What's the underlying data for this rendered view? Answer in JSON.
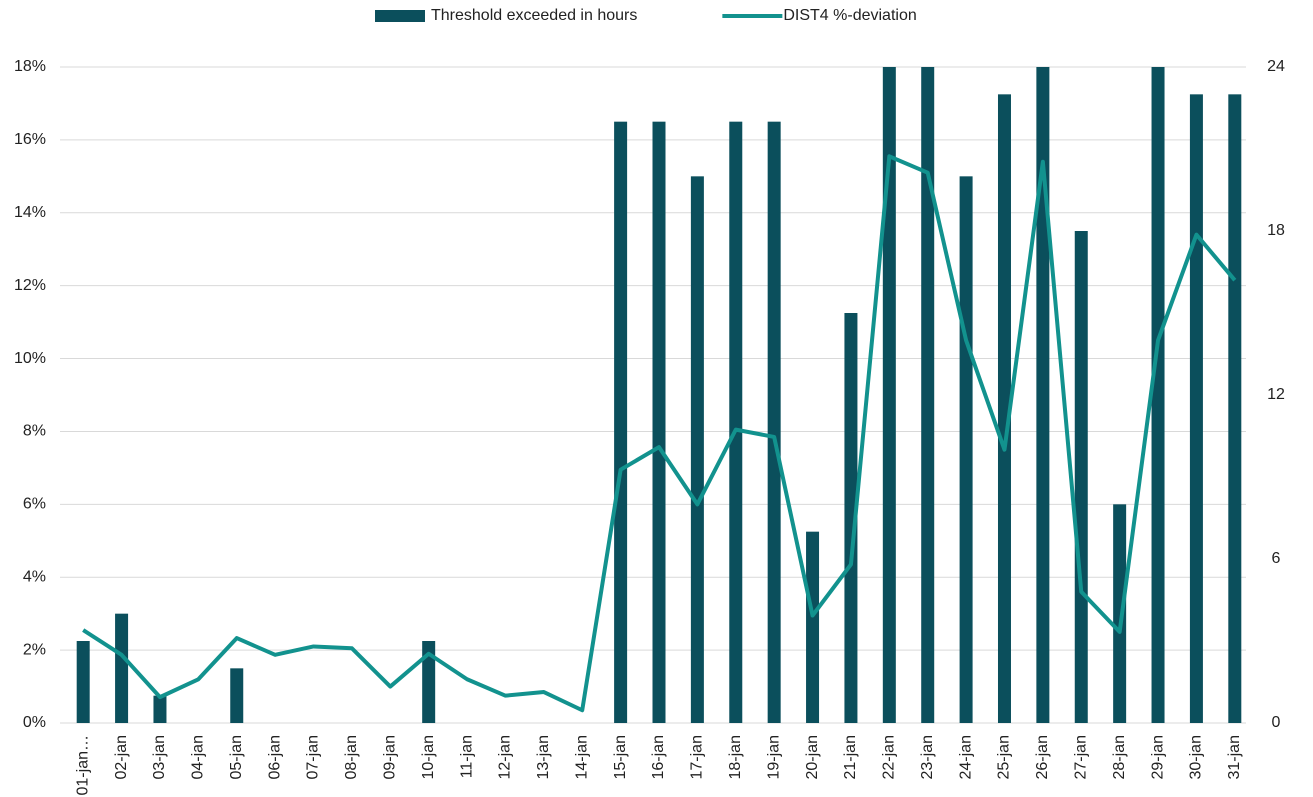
{
  "chart_data": {
    "type": "bar_line",
    "categories": [
      "01-jan…",
      "02-jan",
      "03-jan",
      "04-jan",
      "05-jan",
      "06-jan",
      "07-jan",
      "08-jan",
      "09-jan",
      "10-jan",
      "11-jan",
      "12-jan",
      "13-jan",
      "14-jan",
      "15-jan",
      "16-jan",
      "17-jan",
      "18-jan",
      "19-jan",
      "20-jan",
      "21-jan",
      "22-jan",
      "23-jan",
      "24-jan",
      "25-jan",
      "26-jan",
      "27-jan",
      "28-jan",
      "29-jan",
      "30-jan",
      "31-jan"
    ],
    "series": [
      {
        "name": "Threshold exceeded in hours",
        "type": "bar",
        "axis": "y2",
        "color": "#0b4f5c",
        "values": [
          3,
          4,
          1,
          0,
          2,
          0,
          0,
          0,
          0,
          3,
          0,
          0,
          0,
          0,
          22,
          22,
          20,
          22,
          22,
          7,
          15,
          24,
          24,
          20,
          23,
          24,
          18,
          8,
          24,
          23,
          23
        ]
      },
      {
        "name": "DIST4 %-deviation",
        "type": "line",
        "color": "#12928e",
        "values": [
          2.55,
          1.87,
          0.71,
          1.2,
          2.33,
          1.87,
          2.1,
          2.05,
          1.0,
          1.9,
          1.2,
          0.75,
          0.85,
          0.35,
          6.95,
          7.57,
          6.0,
          8.05,
          7.85,
          2.95,
          4.35,
          15.55,
          15.1,
          10.5,
          7.5,
          15.4,
          3.6,
          2.5,
          10.5,
          13.4,
          12.15
        ]
      }
    ],
    "ylim": [
      0,
      18
    ],
    "yticks": [
      {
        "value": 0,
        "label": "0%"
      },
      {
        "value": 2,
        "label": "2%"
      },
      {
        "value": 4,
        "label": "4%"
      },
      {
        "value": 6,
        "label": "6%"
      },
      {
        "value": 8,
        "label": "8%"
      },
      {
        "value": 10,
        "label": "10%"
      },
      {
        "value": 12,
        "label": "12%"
      },
      {
        "value": 14,
        "label": "14%"
      },
      {
        "value": 16,
        "label": "16%"
      },
      {
        "value": 18,
        "label": "18%"
      }
    ],
    "y2lim": [
      0,
      24
    ],
    "y2ticks": [
      0,
      6,
      12,
      18,
      24
    ],
    "grid": true,
    "legend": "top"
  }
}
